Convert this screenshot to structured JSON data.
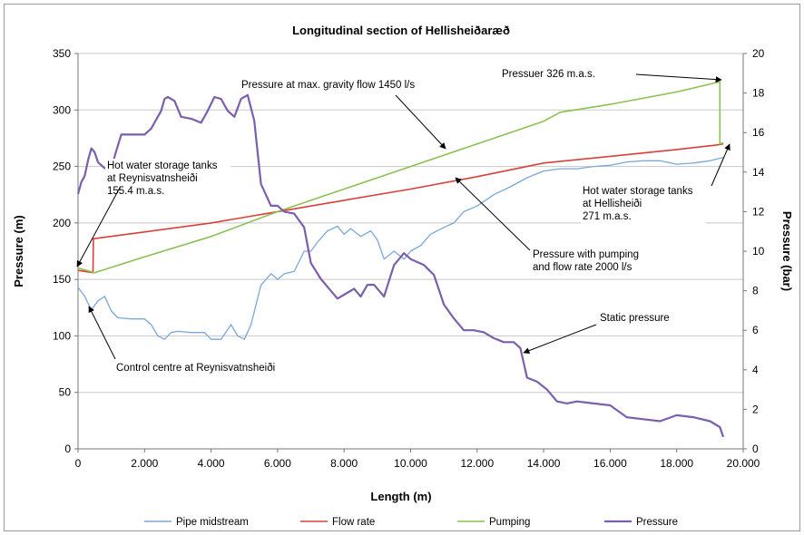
{
  "chart_data": {
    "type": "line",
    "title": "Longitudinal section of Hellisheiðaræð",
    "xlabel": "Length (m)",
    "ylabel": "Pressure (m)",
    "y2label": "Pressure (bar)",
    "xlim": [
      0,
      20000
    ],
    "ylim": [
      0,
      350
    ],
    "y2lim": [
      0,
      20
    ],
    "xticks": [
      "0",
      "2.000",
      "4.000",
      "6.000",
      "8.000",
      "10.000",
      "12.000",
      "14.000",
      "16.000",
      "18.000",
      "20.000"
    ],
    "yticks": [
      "0",
      "50",
      "100",
      "150",
      "200",
      "250",
      "300",
      "350"
    ],
    "y2ticks": [
      "0",
      "2",
      "4",
      "6",
      "8",
      "10",
      "12",
      "14",
      "16",
      "18",
      "20"
    ],
    "grid": "horizontal",
    "legend": "bottom",
    "series": [
      {
        "name": "Pipe midstream",
        "axis": "left",
        "color": "#7aa7d9",
        "points": [
          [
            0,
            143
          ],
          [
            200,
            135
          ],
          [
            400,
            123
          ],
          [
            600,
            131
          ],
          [
            800,
            135
          ],
          [
            1000,
            122
          ],
          [
            1200,
            116
          ],
          [
            1600,
            115
          ],
          [
            2000,
            115
          ],
          [
            2200,
            110
          ],
          [
            2400,
            100
          ],
          [
            2600,
            97
          ],
          [
            2800,
            103
          ],
          [
            3000,
            104
          ],
          [
            3400,
            103
          ],
          [
            3800,
            103
          ],
          [
            4000,
            97
          ],
          [
            4300,
            97
          ],
          [
            4600,
            110
          ],
          [
            4800,
            100
          ],
          [
            5000,
            97
          ],
          [
            5200,
            110
          ],
          [
            5500,
            145
          ],
          [
            5800,
            155
          ],
          [
            6000,
            150
          ],
          [
            6200,
            155
          ],
          [
            6500,
            157
          ],
          [
            6800,
            175
          ],
          [
            7000,
            175
          ],
          [
            7200,
            183
          ],
          [
            7500,
            193
          ],
          [
            7800,
            197
          ],
          [
            8000,
            190
          ],
          [
            8200,
            195
          ],
          [
            8500,
            188
          ],
          [
            8800,
            193
          ],
          [
            9000,
            185
          ],
          [
            9200,
            168
          ],
          [
            9500,
            175
          ],
          [
            9800,
            168
          ],
          [
            10000,
            175
          ],
          [
            10300,
            180
          ],
          [
            10600,
            190
          ],
          [
            11000,
            196
          ],
          [
            11300,
            200
          ],
          [
            11600,
            210
          ],
          [
            12000,
            215
          ],
          [
            12500,
            225
          ],
          [
            13000,
            232
          ],
          [
            13500,
            240
          ],
          [
            14000,
            246
          ],
          [
            14500,
            248
          ],
          [
            15000,
            248
          ],
          [
            15500,
            250
          ],
          [
            16000,
            251
          ],
          [
            16500,
            254
          ],
          [
            17000,
            255
          ],
          [
            17500,
            255
          ],
          [
            18000,
            252
          ],
          [
            18500,
            253
          ],
          [
            19000,
            255
          ],
          [
            19400,
            258
          ]
        ]
      },
      {
        "name": "Flow rate",
        "axis": "left",
        "color": "#d9403a",
        "points": [
          [
            0,
            158
          ],
          [
            450,
            156
          ],
          [
            460,
            186
          ],
          [
            2000,
            192
          ],
          [
            4000,
            200
          ],
          [
            6000,
            210
          ],
          [
            8000,
            220
          ],
          [
            10000,
            230
          ],
          [
            12000,
            241
          ],
          [
            14000,
            253
          ],
          [
            16000,
            259
          ],
          [
            18000,
            265
          ],
          [
            19200,
            269
          ],
          [
            19400,
            270
          ]
        ]
      },
      {
        "name": "Pumping",
        "axis": "left",
        "color": "#8cc152",
        "points": [
          [
            0,
            160
          ],
          [
            500,
            156
          ],
          [
            2000,
            170
          ],
          [
            4000,
            188
          ],
          [
            6000,
            210
          ],
          [
            8000,
            230
          ],
          [
            10000,
            250
          ],
          [
            12000,
            270
          ],
          [
            14000,
            290
          ],
          [
            14500,
            298
          ],
          [
            16000,
            305
          ],
          [
            18000,
            316
          ],
          [
            19300,
            325
          ],
          [
            19300,
            270
          ],
          [
            19400,
            271
          ]
        ]
      },
      {
        "name": "Pressure",
        "axis": "right",
        "color": "#7b5fae",
        "points": [
          [
            0,
            12.9
          ],
          [
            100,
            13.5
          ],
          [
            200,
            13.8
          ],
          [
            300,
            14.6
          ],
          [
            400,
            15.2
          ],
          [
            500,
            15.0
          ],
          [
            600,
            14.5
          ],
          [
            800,
            14.2
          ],
          [
            1000,
            14.1
          ],
          [
            1100,
            14.8
          ],
          [
            1300,
            15.9
          ],
          [
            1500,
            15.9
          ],
          [
            1800,
            15.9
          ],
          [
            2000,
            15.9
          ],
          [
            2200,
            16.2
          ],
          [
            2500,
            17.1
          ],
          [
            2600,
            17.7
          ],
          [
            2700,
            17.8
          ],
          [
            2900,
            17.6
          ],
          [
            3100,
            16.8
          ],
          [
            3400,
            16.7
          ],
          [
            3700,
            16.5
          ],
          [
            3900,
            17.1
          ],
          [
            4100,
            17.8
          ],
          [
            4300,
            17.7
          ],
          [
            4500,
            17.1
          ],
          [
            4700,
            16.8
          ],
          [
            4900,
            17.7
          ],
          [
            5100,
            17.9
          ],
          [
            5300,
            16.6
          ],
          [
            5500,
            13.4
          ],
          [
            5800,
            12.3
          ],
          [
            6000,
            12.3
          ],
          [
            6200,
            12.0
          ],
          [
            6500,
            11.9
          ],
          [
            6800,
            11.2
          ],
          [
            7000,
            9.4
          ],
          [
            7300,
            8.6
          ],
          [
            7600,
            8.0
          ],
          [
            7800,
            7.6
          ],
          [
            8000,
            7.8
          ],
          [
            8300,
            8.1
          ],
          [
            8500,
            7.7
          ],
          [
            8700,
            8.3
          ],
          [
            8900,
            8.3
          ],
          [
            9200,
            7.7
          ],
          [
            9500,
            9.3
          ],
          [
            9800,
            9.9
          ],
          [
            10000,
            9.6
          ],
          [
            10400,
            9.3
          ],
          [
            10700,
            8.8
          ],
          [
            11000,
            7.3
          ],
          [
            11300,
            6.6
          ],
          [
            11600,
            6.0
          ],
          [
            11900,
            6.0
          ],
          [
            12200,
            5.9
          ],
          [
            12500,
            5.6
          ],
          [
            12800,
            5.4
          ],
          [
            13100,
            5.4
          ],
          [
            13300,
            5.1
          ],
          [
            13500,
            3.6
          ],
          [
            13800,
            3.4
          ],
          [
            14100,
            3.0
          ],
          [
            14400,
            2.4
          ],
          [
            14700,
            2.3
          ],
          [
            15000,
            2.4
          ],
          [
            15500,
            2.3
          ],
          [
            16000,
            2.2
          ],
          [
            16500,
            1.6
          ],
          [
            17000,
            1.5
          ],
          [
            17500,
            1.4
          ],
          [
            18000,
            1.7
          ],
          [
            18500,
            1.6
          ],
          [
            19000,
            1.4
          ],
          [
            19300,
            1.1
          ],
          [
            19400,
            0.6
          ]
        ]
      }
    ],
    "annotations": [
      {
        "lines": [
          "Pressure at max. gravity flow 1450 l/s"
        ]
      },
      {
        "lines": [
          "Pressuer 326 m.a.s."
        ]
      },
      {
        "lines": [
          "Hot water storage tanks",
          "at Reynisvatnsheiði",
          "155.4 m.a.s."
        ]
      },
      {
        "lines": [
          "Hot water storage tanks",
          "at Hellisheiði",
          "271 m.a.s."
        ]
      },
      {
        "lines": [
          "Pressure with pumping",
          "and flow rate  2000 l/s"
        ]
      },
      {
        "lines": [
          "Static pressure"
        ]
      },
      {
        "lines": [
          "Control centre at Reynisvatnsheiði"
        ]
      }
    ]
  }
}
